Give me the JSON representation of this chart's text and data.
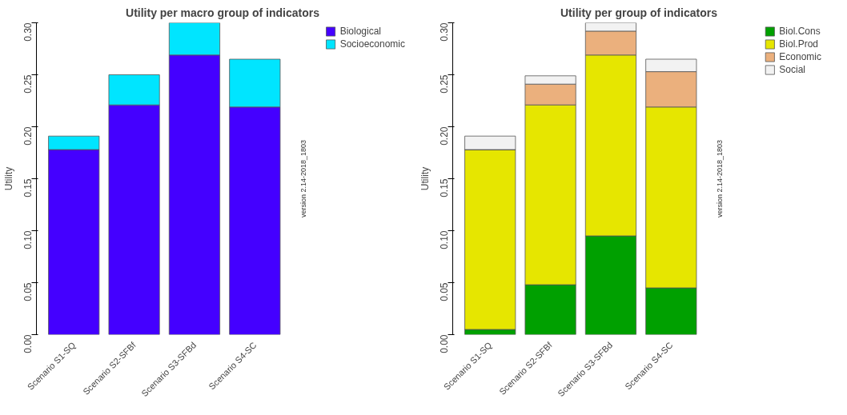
{
  "chart_data": [
    {
      "type": "bar",
      "title": "Utility per macro group of indicators",
      "ylabel": "Utility",
      "stacked": true,
      "legend": "top right",
      "categories": [
        "Scenario S1-SQ",
        "Scenario S2-SFBf",
        "Scenario S3-SFBd",
        "Scenario S4-SC"
      ],
      "series": [
        {
          "name": "Biological",
          "color": "#4400ff",
          "values": [
            0.178,
            0.221,
            0.269,
            0.219
          ]
        },
        {
          "name": "Socioeconomic",
          "color": "#00e5ff",
          "values": [
            0.013,
            0.029,
            0.031,
            0.046
          ]
        }
      ],
      "ylim": [
        0,
        0.3
      ],
      "yticks": [
        {
          "value": 0,
          "label": "0.00"
        },
        {
          "value": 0.05,
          "label": "0.05"
        },
        {
          "value": 0.1,
          "label": "0.10"
        },
        {
          "value": 0.15,
          "label": "0.15"
        },
        {
          "value": 0.2,
          "label": "0.20"
        },
        {
          "value": 0.25,
          "label": "0.25"
        },
        {
          "value": 0.3,
          "label": "0.30"
        }
      ],
      "annotations": [
        "version 2.14-2018_1803"
      ]
    },
    {
      "type": "bar",
      "title": "Utility per group of indicators",
      "ylabel": "Utility",
      "stacked": true,
      "legend": "top right",
      "categories": [
        "Scenario S1-SQ",
        "Scenario S2-SFBf",
        "Scenario S3-SFBd",
        "Scenario S4-SC"
      ],
      "series": [
        {
          "name": "Biol.Cons",
          "color": "#00a000",
          "values": [
            0.005,
            0.048,
            0.095,
            0.045
          ]
        },
        {
          "name": "Biol.Prod",
          "color": "#e6e600",
          "values": [
            0.173,
            0.173,
            0.174,
            0.174
          ]
        },
        {
          "name": "Economic",
          "color": "#ebb07d",
          "values": [
            0,
            0.02,
            0.023,
            0.034
          ]
        },
        {
          "name": "Social",
          "color": "#f2f2f2",
          "values": [
            0.013,
            0.008,
            0.008,
            0.012
          ]
        }
      ],
      "ylim": [
        0,
        0.3
      ],
      "yticks": [
        {
          "value": 0,
          "label": "0.00"
        },
        {
          "value": 0.05,
          "label": "0.05"
        },
        {
          "value": 0.1,
          "label": "0.10"
        },
        {
          "value": 0.15,
          "label": "0.15"
        },
        {
          "value": 0.2,
          "label": "0.20"
        },
        {
          "value": 0.25,
          "label": "0.25"
        },
        {
          "value": 0.3,
          "label": "0.30"
        }
      ],
      "annotations": [
        "version 2.14-2018_1803"
      ]
    }
  ]
}
